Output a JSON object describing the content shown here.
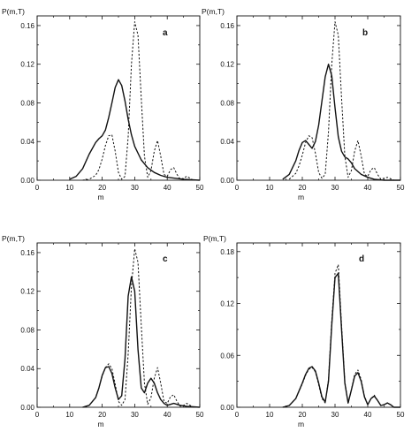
{
  "chart_data": [
    {
      "type": "line",
      "panel_label": "a",
      "ylabel": "P(m,T)",
      "xlabel": "m",
      "xlim": [
        0,
        50
      ],
      "ylim": [
        0,
        0.17
      ],
      "xticks": [
        "0",
        "10",
        "20",
        "30",
        "40",
        "50"
      ],
      "yticks": [
        "0.00",
        "0.04",
        "0.08",
        "0.12",
        "0.16"
      ],
      "grid": false,
      "series": [
        {
          "style": "solid",
          "x": [
            10,
            12,
            14,
            16,
            18,
            19,
            20,
            21,
            22,
            23,
            24,
            25,
            26,
            27,
            28,
            29,
            30,
            32,
            34,
            36,
            38,
            40,
            45,
            50
          ],
          "y": [
            0.001,
            0.004,
            0.012,
            0.027,
            0.039,
            0.043,
            0.046,
            0.052,
            0.065,
            0.08,
            0.096,
            0.104,
            0.098,
            0.082,
            0.063,
            0.047,
            0.035,
            0.021,
            0.013,
            0.008,
            0.005,
            0.003,
            0.001,
            0.0
          ]
        },
        {
          "style": "dashed",
          "x": [
            14,
            16,
            18,
            19,
            20,
            21,
            22,
            23,
            24,
            25,
            26,
            27,
            28,
            29,
            30,
            31,
            32,
            33,
            34,
            35,
            36,
            37,
            38,
            39,
            40,
            41,
            42,
            43,
            44,
            45,
            46,
            47,
            48,
            50
          ],
          "y": [
            0.0,
            0.001,
            0.005,
            0.011,
            0.022,
            0.036,
            0.046,
            0.047,
            0.03,
            0.008,
            0.001,
            0.004,
            0.045,
            0.12,
            0.164,
            0.15,
            0.085,
            0.025,
            0.003,
            0.01,
            0.03,
            0.041,
            0.025,
            0.006,
            0.004,
            0.011,
            0.013,
            0.006,
            0.001,
            0.002,
            0.004,
            0.002,
            0.0,
            0.0
          ]
        }
      ]
    },
    {
      "type": "line",
      "panel_label": "b",
      "ylabel": "P(m,T)",
      "xlabel": "m",
      "xlim": [
        0,
        50
      ],
      "ylim": [
        0,
        0.17
      ],
      "xticks": [
        "0",
        "10",
        "20",
        "30",
        "40",
        "50"
      ],
      "yticks": [
        "0.00",
        "0.04",
        "0.08",
        "0.12",
        "0.16"
      ],
      "grid": false,
      "series": [
        {
          "style": "solid",
          "x": [
            14,
            16,
            18,
            19,
            20,
            21,
            22,
            23,
            24,
            25,
            26,
            27,
            28,
            29,
            30,
            31,
            32,
            33,
            34,
            35,
            36,
            38,
            40,
            42,
            45,
            50
          ],
          "y": [
            0.001,
            0.006,
            0.02,
            0.031,
            0.039,
            0.041,
            0.037,
            0.033,
            0.04,
            0.057,
            0.082,
            0.107,
            0.12,
            0.108,
            0.075,
            0.045,
            0.03,
            0.024,
            0.022,
            0.018,
            0.012,
            0.006,
            0.003,
            0.001,
            0.0,
            0.0
          ]
        },
        {
          "style": "dashed",
          "x": [
            16,
            18,
            19,
            20,
            21,
            22,
            23,
            24,
            25,
            26,
            27,
            28,
            29,
            30,
            31,
            32,
            33,
            34,
            35,
            36,
            37,
            38,
            39,
            40,
            41,
            42,
            43,
            44,
            46,
            48,
            50
          ],
          "y": [
            0.001,
            0.007,
            0.015,
            0.026,
            0.039,
            0.046,
            0.044,
            0.028,
            0.008,
            0.002,
            0.006,
            0.05,
            0.12,
            0.164,
            0.15,
            0.085,
            0.025,
            0.003,
            0.01,
            0.03,
            0.041,
            0.025,
            0.006,
            0.004,
            0.011,
            0.013,
            0.006,
            0.001,
            0.003,
            0.0,
            0.0
          ]
        }
      ]
    },
    {
      "type": "line",
      "panel_label": "c",
      "ylabel": "P(m,T)",
      "xlabel": "m",
      "xlim": [
        0,
        50
      ],
      "ylim": [
        0,
        0.17
      ],
      "xticks": [
        "0",
        "10",
        "20",
        "30",
        "40",
        "50"
      ],
      "yticks": [
        "0.00",
        "0.04",
        "0.08",
        "0.12",
        "0.16"
      ],
      "grid": false,
      "series": [
        {
          "style": "solid",
          "x": [
            14,
            16,
            18,
            19,
            20,
            21,
            22,
            23,
            24,
            25,
            26,
            27,
            28,
            29,
            30,
            31,
            32,
            33,
            34,
            35,
            36,
            37,
            38,
            39,
            40,
            42,
            44,
            46,
            50
          ],
          "y": [
            0.0,
            0.002,
            0.01,
            0.02,
            0.033,
            0.041,
            0.042,
            0.035,
            0.02,
            0.008,
            0.012,
            0.05,
            0.115,
            0.135,
            0.12,
            0.06,
            0.02,
            0.015,
            0.025,
            0.03,
            0.025,
            0.015,
            0.008,
            0.004,
            0.002,
            0.004,
            0.002,
            0.001,
            0.0
          ]
        },
        {
          "style": "dashed",
          "x": [
            14,
            16,
            18,
            19,
            20,
            21,
            22,
            23,
            24,
            25,
            26,
            27,
            28,
            29,
            30,
            31,
            32,
            33,
            34,
            35,
            36,
            37,
            38,
            39,
            40,
            41,
            42,
            43,
            44,
            45,
            46,
            48,
            50
          ],
          "y": [
            0.0,
            0.002,
            0.01,
            0.02,
            0.032,
            0.041,
            0.045,
            0.04,
            0.024,
            0.006,
            0.002,
            0.008,
            0.055,
            0.125,
            0.164,
            0.15,
            0.085,
            0.025,
            0.003,
            0.01,
            0.03,
            0.041,
            0.025,
            0.006,
            0.004,
            0.011,
            0.013,
            0.006,
            0.001,
            0.002,
            0.004,
            0.0,
            0.0
          ]
        }
      ]
    },
    {
      "type": "line",
      "panel_label": "d",
      "ylabel": "P(m,T)",
      "xlabel": "m",
      "xlim": [
        0,
        50
      ],
      "ylim": [
        0,
        0.19
      ],
      "xticks": [
        "0",
        "10",
        "20",
        "30",
        "40",
        "50"
      ],
      "yticks": [
        "0.00",
        "0.06",
        "0.12",
        "0.18"
      ],
      "grid": false,
      "series": [
        {
          "style": "solid",
          "x": [
            14,
            16,
            18,
            20,
            21,
            22,
            23,
            24,
            25,
            26,
            27,
            28,
            29,
            30,
            31,
            32,
            33,
            34,
            35,
            36,
            37,
            38,
            39,
            40,
            41,
            42,
            43,
            44,
            45,
            46,
            47,
            48,
            50
          ],
          "y": [
            0.0,
            0.002,
            0.01,
            0.028,
            0.038,
            0.045,
            0.047,
            0.042,
            0.028,
            0.012,
            0.006,
            0.03,
            0.095,
            0.15,
            0.155,
            0.09,
            0.028,
            0.005,
            0.02,
            0.036,
            0.04,
            0.03,
            0.012,
            0.003,
            0.01,
            0.013,
            0.008,
            0.002,
            0.003,
            0.005,
            0.003,
            0.0,
            0.0
          ]
        },
        {
          "style": "dashed",
          "x": [
            14,
            16,
            18,
            20,
            21,
            22,
            23,
            24,
            25,
            26,
            27,
            28,
            29,
            30,
            31,
            32,
            33,
            34,
            35,
            36,
            37,
            38,
            39,
            40,
            41,
            42,
            43,
            44,
            45,
            46,
            47,
            48,
            50
          ],
          "y": [
            0.0,
            0.002,
            0.01,
            0.027,
            0.037,
            0.044,
            0.046,
            0.041,
            0.026,
            0.01,
            0.005,
            0.032,
            0.1,
            0.155,
            0.165,
            0.095,
            0.03,
            0.004,
            0.02,
            0.038,
            0.043,
            0.032,
            0.013,
            0.003,
            0.01,
            0.014,
            0.008,
            0.002,
            0.003,
            0.005,
            0.003,
            0.0,
            0.0
          ]
        }
      ]
    }
  ]
}
